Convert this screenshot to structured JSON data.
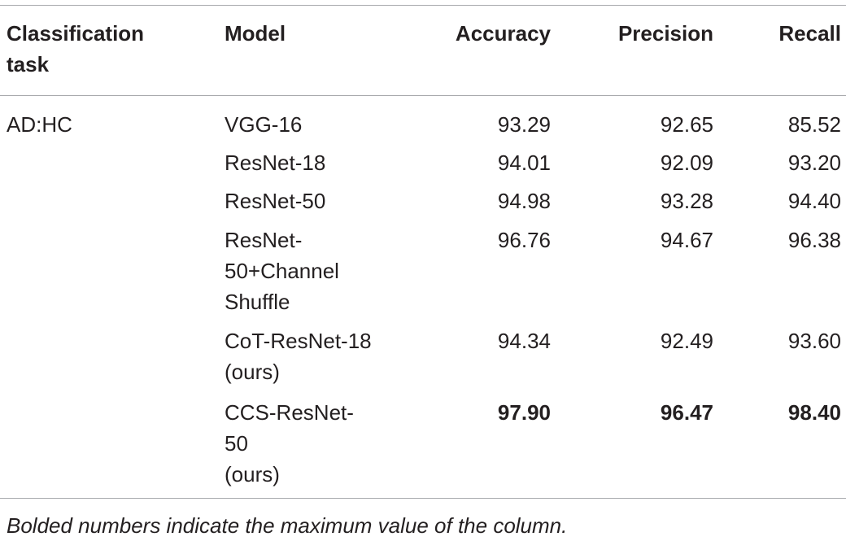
{
  "table": {
    "headers": {
      "task": [
        "Classification",
        "task"
      ],
      "model": "Model",
      "accuracy": "Accuracy",
      "precision": "Precision",
      "recall": "Recall"
    },
    "task_label": "AD:HC",
    "rows": [
      {
        "model": [
          "VGG-16"
        ],
        "accuracy": "93.29",
        "precision": "92.65",
        "recall": "85.52"
      },
      {
        "model": [
          "ResNet-18"
        ],
        "accuracy": "94.01",
        "precision": "92.09",
        "recall": "93.20"
      },
      {
        "model": [
          "ResNet-50"
        ],
        "accuracy": "94.98",
        "precision": "93.28",
        "recall": "94.40"
      },
      {
        "model": [
          "ResNet-",
          "50+Channel",
          "Shuffle"
        ],
        "accuracy": "96.76",
        "precision": "94.67",
        "recall": "96.38"
      },
      {
        "model": [
          "CoT-ResNet-18",
          "(ours)"
        ],
        "accuracy": "94.34",
        "precision": "92.49",
        "recall": "93.60"
      },
      {
        "model": [
          "CCS-ResNet-",
          "50",
          "(ours)"
        ],
        "accuracy": "97.90",
        "precision": "96.47",
        "recall": "98.40"
      }
    ]
  },
  "footnote": "Bolded numbers indicate the maximum value of the column."
}
